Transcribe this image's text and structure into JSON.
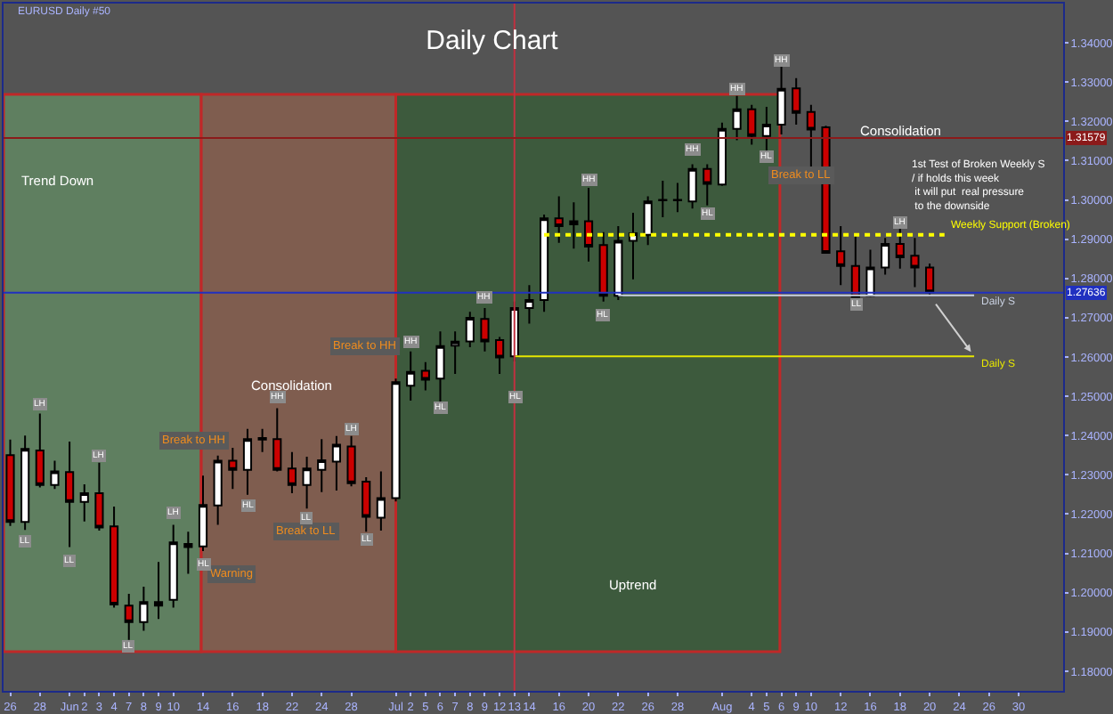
{
  "chart_data": {
    "type": "candlestick",
    "title": "Daily Chart",
    "categories": [
      "26",
      null,
      "28",
      null,
      "Jun",
      "2",
      "3",
      "4",
      "7",
      "8",
      "9",
      "10",
      null,
      "14",
      null,
      "16",
      null,
      "18",
      null,
      "22",
      null,
      "24",
      null,
      "28",
      null,
      null,
      "Jul",
      "2",
      "5",
      "6",
      "7",
      "8",
      "9",
      "12",
      "13",
      "14",
      null,
      "16",
      null,
      "20",
      null,
      "22",
      null,
      "26",
      null,
      "28",
      null,
      null,
      "Aug",
      null,
      "4",
      "5",
      "6",
      "9",
      "10",
      null,
      "12",
      null,
      "16",
      null,
      "18",
      null,
      "20",
      null,
      "24",
      null,
      "26",
      null,
      "30",
      null,
      null
    ],
    "ohlc": [
      [
        1.235,
        1.239,
        1.217,
        1.218
      ],
      [
        1.218,
        1.24,
        1.216,
        1.2366
      ],
      [
        1.2362,
        1.2456,
        1.2268,
        1.2274
      ],
      [
        1.2274,
        1.2336,
        1.2264,
        1.2309
      ],
      [
        1.2307,
        1.2385,
        1.2116,
        1.2231
      ],
      [
        1.2231,
        1.2276,
        1.2181,
        1.2253
      ],
      [
        1.2253,
        1.2331,
        1.2158,
        1.2166
      ],
      [
        1.2169,
        1.2219,
        1.1962,
        1.197
      ],
      [
        1.1967,
        1.1997,
        1.188,
        1.1925
      ],
      [
        1.1925,
        1.2015,
        1.1903,
        1.1976
      ],
      [
        1.1967,
        1.2078,
        1.1933,
        1.1976
      ],
      [
        1.1982,
        1.2173,
        1.1962,
        1.2128
      ],
      [
        1.2124,
        1.2155,
        1.2048,
        1.2116
      ],
      [
        1.2118,
        1.2298,
        1.2106,
        1.2223
      ],
      [
        1.2222,
        1.2349,
        1.2173,
        1.2336
      ],
      [
        1.2336,
        1.2369,
        1.2264,
        1.2313
      ],
      [
        1.2313,
        1.2417,
        1.2249,
        1.2391
      ],
      [
        1.239,
        1.2417,
        1.2358,
        1.2394
      ],
      [
        1.2391,
        1.247,
        1.2309,
        1.2313
      ],
      [
        1.2316,
        1.2358,
        1.2253,
        1.2274
      ],
      [
        1.2274,
        1.2346,
        1.2214,
        1.2316
      ],
      [
        1.2313,
        1.2391,
        1.2256,
        1.2337
      ],
      [
        1.2334,
        1.2399,
        1.226,
        1.2377
      ],
      [
        1.2372,
        1.2399,
        1.2271,
        1.2279
      ],
      [
        1.2283,
        1.2294,
        1.2155,
        1.2193
      ],
      [
        1.2191,
        1.2309,
        1.2158,
        1.2241
      ],
      [
        1.2241,
        1.2545,
        1.2232,
        1.2536
      ],
      [
        1.2527,
        1.2614,
        1.2489,
        1.2562
      ],
      [
        1.2565,
        1.2587,
        1.2515,
        1.2542
      ],
      [
        1.2545,
        1.2665,
        1.2485,
        1.2628
      ],
      [
        1.2629,
        1.2665,
        1.2557,
        1.2639
      ],
      [
        1.264,
        1.2715,
        1.2625,
        1.27
      ],
      [
        1.2697,
        1.2725,
        1.2614,
        1.264
      ],
      [
        1.2643,
        1.2651,
        1.2557,
        1.2599
      ],
      [
        1.2602,
        1.2741,
        1.2589,
        1.2725
      ],
      [
        1.2725,
        1.2783,
        1.2685,
        1.2745
      ],
      [
        1.2745,
        1.2963,
        1.2715,
        1.2953
      ],
      [
        1.2953,
        1.3009,
        1.2891,
        1.2933
      ],
      [
        1.2938,
        1.2994,
        1.2876,
        1.2946
      ],
      [
        1.2946,
        1.3031,
        1.2843,
        1.2881
      ],
      [
        1.2885,
        1.2918,
        1.2741,
        1.2756
      ],
      [
        1.2756,
        1.2933,
        1.2745,
        1.2896
      ],
      [
        1.2896,
        1.2967,
        1.2798,
        1.2915
      ],
      [
        1.2911,
        1.3009,
        1.2885,
        1.2996
      ],
      [
        1.2999,
        1.3049,
        1.2956,
        1.3
      ],
      [
        1.3,
        1.3043,
        1.2969,
        1.2999
      ],
      [
        1.2996,
        1.3091,
        1.2978,
        1.3079
      ],
      [
        1.3079,
        1.3091,
        1.2986,
        1.3041
      ],
      [
        1.3039,
        1.3197,
        1.3036,
        1.3181
      ],
      [
        1.3181,
        1.3265,
        1.3152,
        1.3231
      ],
      [
        1.3231,
        1.3242,
        1.3141,
        1.3163
      ],
      [
        1.3163,
        1.3237,
        1.3121,
        1.3192
      ],
      [
        1.3192,
        1.3339,
        1.3167,
        1.3283
      ],
      [
        1.3284,
        1.331,
        1.3192,
        1.3222
      ],
      [
        1.3224,
        1.3242,
        1.3081,
        1.3179
      ],
      [
        1.3185,
        1.3189,
        1.2865,
        1.2865
      ],
      [
        1.2869,
        1.2933,
        1.2783,
        1.2832
      ],
      [
        1.2832,
        1.2914,
        1.2753,
        1.2753
      ],
      [
        1.2756,
        1.2873,
        1.2753,
        1.2828
      ],
      [
        1.2828,
        1.2903,
        1.281,
        1.2888
      ],
      [
        1.2888,
        1.2933,
        1.2825,
        1.2854
      ],
      [
        1.2858,
        1.2903,
        1.2778,
        1.2828
      ],
      [
        1.2828,
        1.2838,
        1.2756,
        1.2765
      ],
      null,
      null,
      null,
      null,
      null,
      null,
      null,
      null
    ],
    "series": [
      {
        "type": "line",
        "name": "Weekly Support (Broken)",
        "color": "#ffff00",
        "line_style": "dotted",
        "values": [
          null,
          null,
          null,
          null,
          null,
          null,
          null,
          null,
          null,
          null,
          null,
          null,
          null,
          null,
          null,
          null,
          null,
          null,
          null,
          null,
          null,
          null,
          null,
          null,
          null,
          null,
          null,
          null,
          null,
          null,
          null,
          null,
          null,
          null,
          null,
          null,
          1.2911,
          1.2911,
          1.2911,
          1.2911,
          1.2911,
          1.2911,
          1.2911,
          1.2911,
          1.2911,
          1.2911,
          1.2911,
          1.2911,
          1.2911,
          1.2911,
          1.2911,
          1.2911,
          1.2911,
          1.2911,
          1.2911,
          1.2911,
          1.2911,
          1.2911,
          1.2911,
          1.2911,
          1.2911,
          1.2911,
          1.2911,
          1.2911,
          null,
          null,
          null,
          null,
          null,
          null,
          null
        ]
      },
      {
        "type": "line",
        "name": "Daily S",
        "color": "#c8d0e0",
        "line_style": "solid",
        "values": [
          null,
          null,
          null,
          null,
          null,
          null,
          null,
          null,
          null,
          null,
          null,
          null,
          null,
          null,
          null,
          null,
          null,
          null,
          null,
          null,
          null,
          null,
          null,
          null,
          null,
          null,
          null,
          null,
          null,
          null,
          null,
          null,
          null,
          null,
          null,
          null,
          null,
          null,
          null,
          null,
          null,
          1.2757,
          1.2757,
          1.2757,
          1.2757,
          1.2757,
          1.2757,
          1.2757,
          1.2757,
          1.2757,
          1.2757,
          1.2757,
          1.2757,
          1.2757,
          1.2757,
          1.2757,
          1.2757,
          1.2757,
          1.2757,
          1.2757,
          1.2757,
          1.2757,
          1.2757,
          1.2757,
          1.2757,
          1.2757,
          null,
          null,
          null,
          null,
          null
        ]
      },
      {
        "type": "line",
        "name": "Daily S",
        "color": "#e6e600",
        "line_style": "solid",
        "values": [
          null,
          null,
          null,
          null,
          null,
          null,
          null,
          null,
          null,
          null,
          null,
          null,
          null,
          null,
          null,
          null,
          null,
          null,
          null,
          null,
          null,
          null,
          null,
          null,
          null,
          null,
          null,
          null,
          null,
          null,
          null,
          null,
          null,
          null,
          1.2602,
          1.2602,
          1.2602,
          1.2602,
          1.2602,
          1.2602,
          1.2602,
          1.2602,
          1.2602,
          1.2602,
          1.2602,
          1.2602,
          1.2602,
          1.2602,
          1.2602,
          1.2602,
          1.2602,
          1.2602,
          1.2602,
          1.2602,
          1.2602,
          1.2602,
          1.2602,
          1.2602,
          1.2602,
          1.2602,
          1.2602,
          1.2602,
          1.2602,
          1.2602,
          1.2602,
          1.2602,
          null,
          null,
          null,
          null,
          null
        ]
      }
    ],
    "ref_lines": [
      {
        "axis": "x",
        "value": "13",
        "color": "#c03040"
      },
      {
        "axis": "y",
        "value": 1.31579,
        "label": "1.31579",
        "color": "#8b1a1a"
      },
      {
        "axis": "y",
        "value": 1.27636,
        "label": "1.27636",
        "color": "#2030c0"
      }
    ],
    "annotations": [
      "EURUSD Daily #50",
      "Break to HH",
      "Warning",
      "Break to LL",
      "Break to HH",
      "Break to LL",
      "Trend Down",
      "Consolidation",
      "Consolidation",
      "1st Test of Broken Weekly S\n/ if holds this week\n it will put  real pressure\n to the downside",
      "Uptrend",
      "LL",
      "LH",
      "LL",
      "LH",
      "LL",
      "LH",
      "HL",
      "HL",
      "HH",
      "LL",
      "LH",
      "LL",
      "HH",
      "HL",
      "HH",
      "HL",
      "HH",
      "HL",
      "HH",
      "HL",
      "HH",
      "HL",
      "HH",
      "LL",
      "LH"
    ],
    "ylim": [
      1.175,
      1.35
    ],
    "yticks": [
      {
        "value": 1.18,
        "label": "1.18000"
      },
      {
        "value": 1.19,
        "label": "1.19000"
      },
      {
        "value": 1.2,
        "label": "1.20000"
      },
      {
        "value": 1.21,
        "label": "1.21000"
      },
      {
        "value": 1.22,
        "label": "1.22000"
      },
      {
        "value": 1.23,
        "label": "1.23000"
      },
      {
        "value": 1.24,
        "label": "1.24000"
      },
      {
        "value": 1.25,
        "label": "1.25000"
      },
      {
        "value": 1.26,
        "label": "1.26000"
      },
      {
        "value": 1.27,
        "label": "1.27000"
      },
      {
        "value": 1.28,
        "label": "1.28000"
      },
      {
        "value": 1.29,
        "label": "1.29000"
      },
      {
        "value": 1.3,
        "label": "1.30000"
      },
      {
        "value": 1.31,
        "label": "1.31000"
      },
      {
        "value": 1.32,
        "label": "1.32000"
      },
      {
        "value": 1.33,
        "label": "1.33000"
      },
      {
        "value": 1.34,
        "label": "1.34000"
      }
    ],
    "grid": false,
    "legend": false
  }
}
